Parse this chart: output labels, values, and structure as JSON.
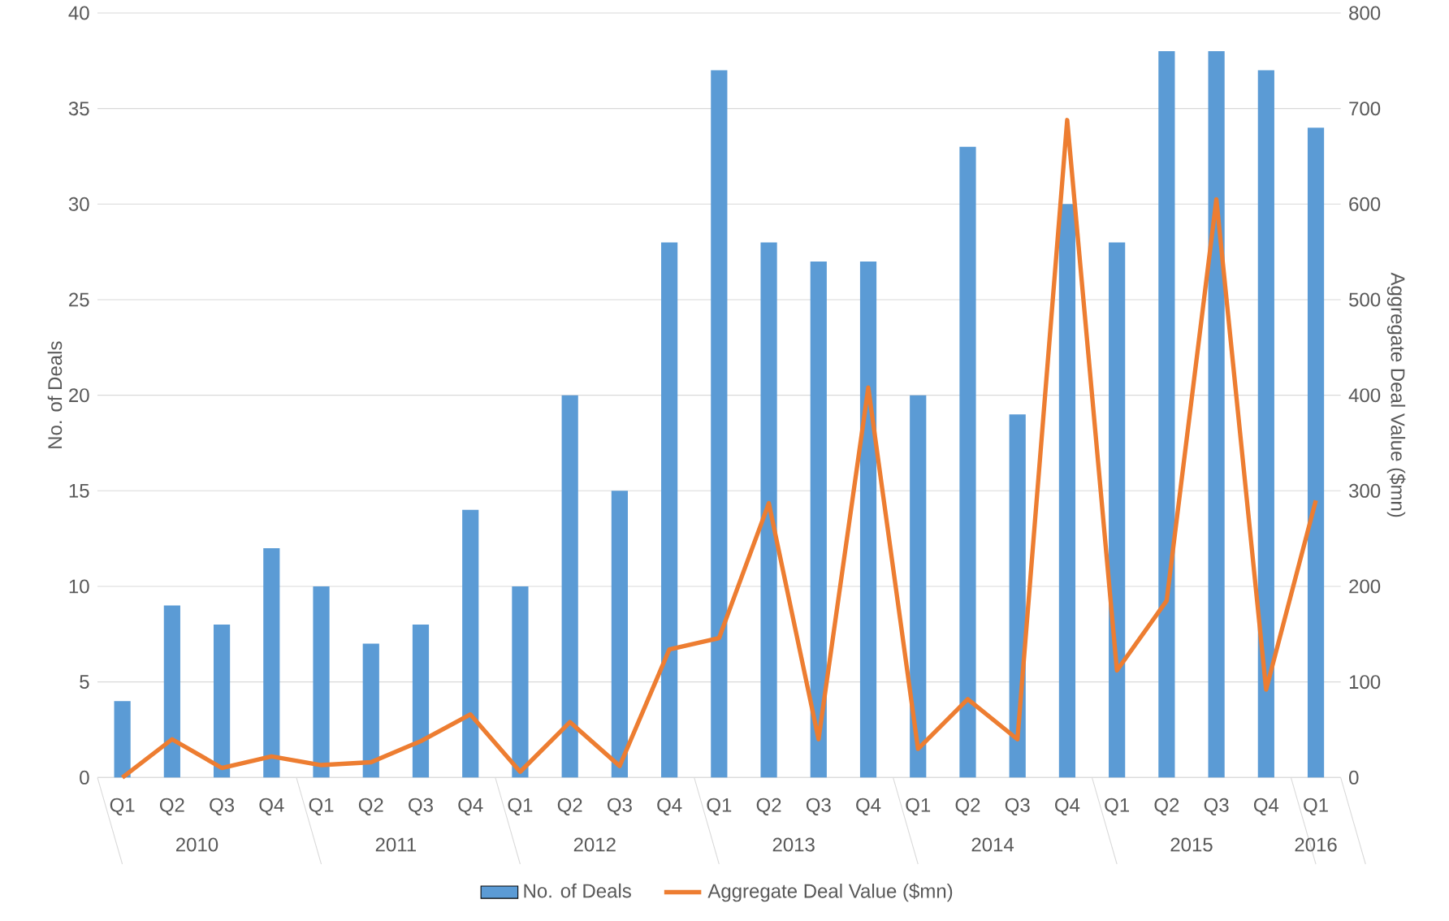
{
  "chart_data": {
    "type": "bar",
    "categories": [
      "Q1",
      "Q2",
      "Q3",
      "Q4",
      "Q1",
      "Q2",
      "Q3",
      "Q4",
      "Q1",
      "Q2",
      "Q3",
      "Q4",
      "Q1",
      "Q2",
      "Q3",
      "Q4",
      "Q1",
      "Q2",
      "Q3",
      "Q4",
      "Q1",
      "Q2",
      "Q3",
      "Q4",
      "Q1"
    ],
    "annotations": [
      "2010",
      "2011",
      "2012",
      "2013",
      "2014",
      "2015",
      "2016"
    ],
    "ylabel": "No. of Deals",
    "y2label": "Aggregate Deal Value ($mn)",
    "ylim": [
      0,
      40
    ],
    "yticks": [
      0,
      5,
      10,
      15,
      20,
      25,
      30,
      35,
      40
    ],
    "y2lim": [
      0,
      800
    ],
    "y2ticks": [
      0,
      100,
      200,
      300,
      400,
      500,
      600,
      700,
      800
    ],
    "grid": "y",
    "legend": "bottom",
    "series": [
      {
        "name": "No. of Deals",
        "color": "#5b9bd5",
        "values": [
          4,
          9,
          8,
          12,
          10,
          7,
          8,
          14,
          10,
          20,
          15,
          28,
          37,
          28,
          27,
          27,
          20,
          33,
          19,
          30,
          28,
          38,
          38,
          37,
          34
        ]
      },
      {
        "name": "Aggregate Deal Value ($mn)",
        "type": "line",
        "axis": "y2",
        "color": "#ed7d31",
        "values": [
          0,
          40,
          10,
          22,
          13,
          16,
          38,
          66,
          6,
          58,
          12,
          134,
          146,
          287,
          40,
          408,
          30,
          82,
          40,
          688,
          112,
          185,
          605,
          92,
          290
        ]
      }
    ]
  }
}
